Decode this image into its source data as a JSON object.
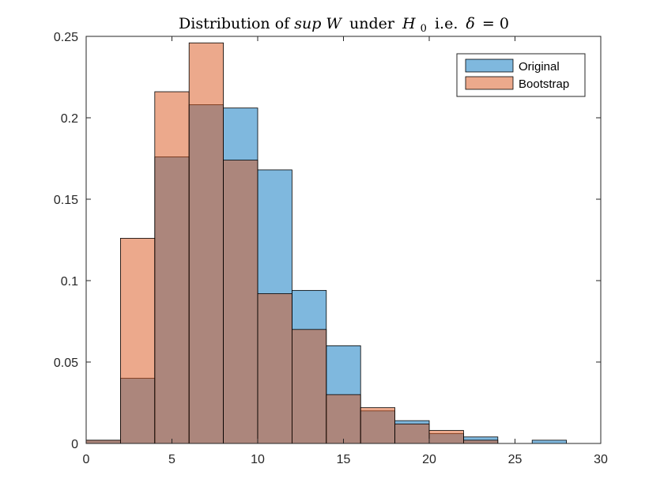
{
  "chart_data": {
    "type": "bar",
    "title": {
      "prefix": "Distribution of ",
      "sup": "sup",
      "W": "W",
      "under": "under",
      "H": "H",
      "H_sub": "0",
      "ie": "i.e.",
      "delta": "δ",
      "eq": "= 0"
    },
    "xlabel": "",
    "ylabel": "",
    "xlim": [
      0,
      30
    ],
    "ylim": [
      0,
      0.25
    ],
    "xticks": [
      0,
      5,
      10,
      15,
      20,
      25,
      30
    ],
    "xtick_labels": [
      "0",
      "5",
      "10",
      "15",
      "20",
      "25",
      "30"
    ],
    "yticks": [
      0,
      0.05,
      0.1,
      0.15,
      0.2,
      0.25
    ],
    "ytick_labels": [
      "0",
      "0.05",
      "0.1",
      "0.15",
      "0.2",
      "0.25"
    ],
    "bin_edges": [
      0,
      2,
      4,
      6,
      8,
      10,
      12,
      14,
      16,
      18,
      20,
      22,
      24,
      26,
      28
    ],
    "grid": false,
    "legend_position": "top-right",
    "series": [
      {
        "name": "Original",
        "color": "#0072BD",
        "values": [
          0.002,
          0.04,
          0.176,
          0.208,
          0.206,
          0.168,
          0.094,
          0.06,
          0.02,
          0.014,
          0.006,
          0.004,
          0,
          0.002
        ]
      },
      {
        "name": "Bootstrap",
        "color": "#D95319",
        "values": [
          0.002,
          0.126,
          0.216,
          0.246,
          0.174,
          0.092,
          0.07,
          0.03,
          0.022,
          0.012,
          0.008,
          0.002,
          0,
          0
        ]
      }
    ]
  }
}
